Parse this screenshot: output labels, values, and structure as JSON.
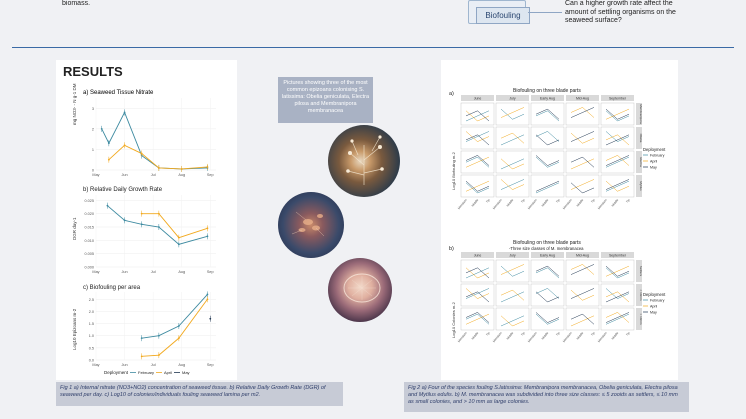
{
  "header": {
    "left_fragment": "biomass.",
    "biofouling_label": "Biofouling",
    "question": "Can a higher growth rate affect the amount of settling organisms on the seaweed surface?"
  },
  "results": {
    "title": "RESULTS",
    "chart_a_title": "a) Seaweed Tissue Nitrate",
    "chart_b_title": "b) Relative Daily Growth Rate",
    "chart_c_title": "c) Biofouling per area",
    "chart_a_ylabel": "mg NO3- - N g-1 DM",
    "chart_b_ylabel": "DGR day-1",
    "chart_c_ylabel": "Log10 Epizoans m-2",
    "legend_title": "Deployment",
    "legend_items": [
      "February",
      "April",
      "May"
    ]
  },
  "pictures": {
    "caption": "Pictures showing three of the most common epizoans colonising S. latissima: Obelia geniculata, Electra pilosa and Membranipora membranacea"
  },
  "captions": {
    "fig1": "Fig 1 a) Internal nitrate (NO3+NO2) concentration of seaweed tissue. b) Relative Daily Growth Rate (DGR) of seaweed per day. c) Log10 of colonies/individuals fouling seaweed lamina per m2.",
    "fig2": "Fig 2 a) Four of the species fouling S.latissima: Membranipora membranacea, Obelia geniculata, Electra pilosa and Mytilus edulis. b) M. membranacea was subdivided into three size classes: ≤ 5 zooids as settlers, ≤ 10 mm as small colonies, and > 10 mm as large colonies."
  },
  "right_charts": {
    "a_label": "a)",
    "a_title": "Biofouling on three blade parts",
    "b_label": "b)",
    "b_title": "Biofouling on three blade parts",
    "b_subtitle": "-Three size classes of M. membranacea",
    "months": [
      "June",
      "July",
      "Early Aug",
      "Mid-Aug",
      "September"
    ],
    "rows_a": [
      "Membranipora",
      "Obelia",
      "Electra",
      "Mytilus"
    ],
    "rows_b": [
      "Settlers",
      "< 10mm",
      "> 10mm"
    ],
    "a_ylabel": "Log10 Biofouling m-2",
    "b_ylabel": "Log10 Colonies m-2",
    "xticks": [
      "Meristem",
      "Middle",
      "Tip"
    ],
    "legend_title": "Deployment",
    "legend_items": [
      "February",
      "April",
      "May"
    ]
  },
  "chart_data": [
    {
      "type": "line",
      "title": "a) Seaweed Tissue Nitrate",
      "ylabel": "mg NO3- - N g-1 DM",
      "categories": [
        "May",
        "Jun",
        "Jul",
        "Aug",
        "Sep"
      ],
      "yticks": [
        "0",
        "1",
        "2",
        "3"
      ],
      "ylim": [
        0,
        3.5
      ],
      "series": [
        {
          "name": "February",
          "x": [
            0.2,
            0.45,
            1.0,
            1.6,
            2.2,
            3.0,
            3.9
          ],
          "values": [
            2.0,
            1.3,
            2.8,
            0.7,
            0.1,
            0.05,
            0.1
          ]
        },
        {
          "name": "April",
          "x": [
            0.45,
            1.0,
            1.6,
            2.2,
            3.0,
            3.9
          ],
          "values": [
            0.5,
            1.2,
            0.8,
            0.1,
            0.05,
            0.15
          ]
        }
      ]
    },
    {
      "type": "line",
      "title": "b) Relative Daily Growth Rate",
      "ylabel": "DGR day-1",
      "categories": [
        "May",
        "Jun",
        "Jul",
        "Aug",
        "Sep"
      ],
      "yticks": [
        "0.000",
        "0.005",
        "0.010",
        "0.015",
        "0.020",
        "0.025"
      ],
      "ylim": [
        0,
        0.027
      ],
      "series": [
        {
          "name": "February",
          "x": [
            0.4,
            1.0,
            1.6,
            2.2,
            2.9,
            3.9
          ],
          "values": [
            0.023,
            0.0175,
            0.016,
            0.015,
            0.0085,
            0.0115
          ]
        },
        {
          "name": "April",
          "x": [
            1.6,
            2.2,
            2.9,
            3.9
          ],
          "values": [
            0.02,
            0.02,
            0.011,
            0.0145
          ]
        }
      ]
    },
    {
      "type": "line",
      "title": "c) Biofouling per area",
      "ylabel": "Log10 Epizoans m-2",
      "categories": [
        "May",
        "Jun",
        "Jul",
        "Aug",
        "Sep"
      ],
      "yticks": [
        "0.0",
        "0.5",
        "1.0",
        "1.5",
        "2.0",
        "2.5"
      ],
      "ylim": [
        0,
        2.8
      ],
      "series": [
        {
          "name": "February",
          "x": [
            1.6,
            2.2,
            2.9,
            3.9
          ],
          "values": [
            0.9,
            1.0,
            1.4,
            2.7
          ]
        },
        {
          "name": "April",
          "x": [
            1.6,
            2.2,
            2.9,
            3.9
          ],
          "values": [
            0.15,
            0.2,
            0.9,
            2.5
          ]
        },
        {
          "name": "May",
          "x": [
            4.0
          ],
          "values": [
            1.7
          ]
        }
      ]
    }
  ]
}
